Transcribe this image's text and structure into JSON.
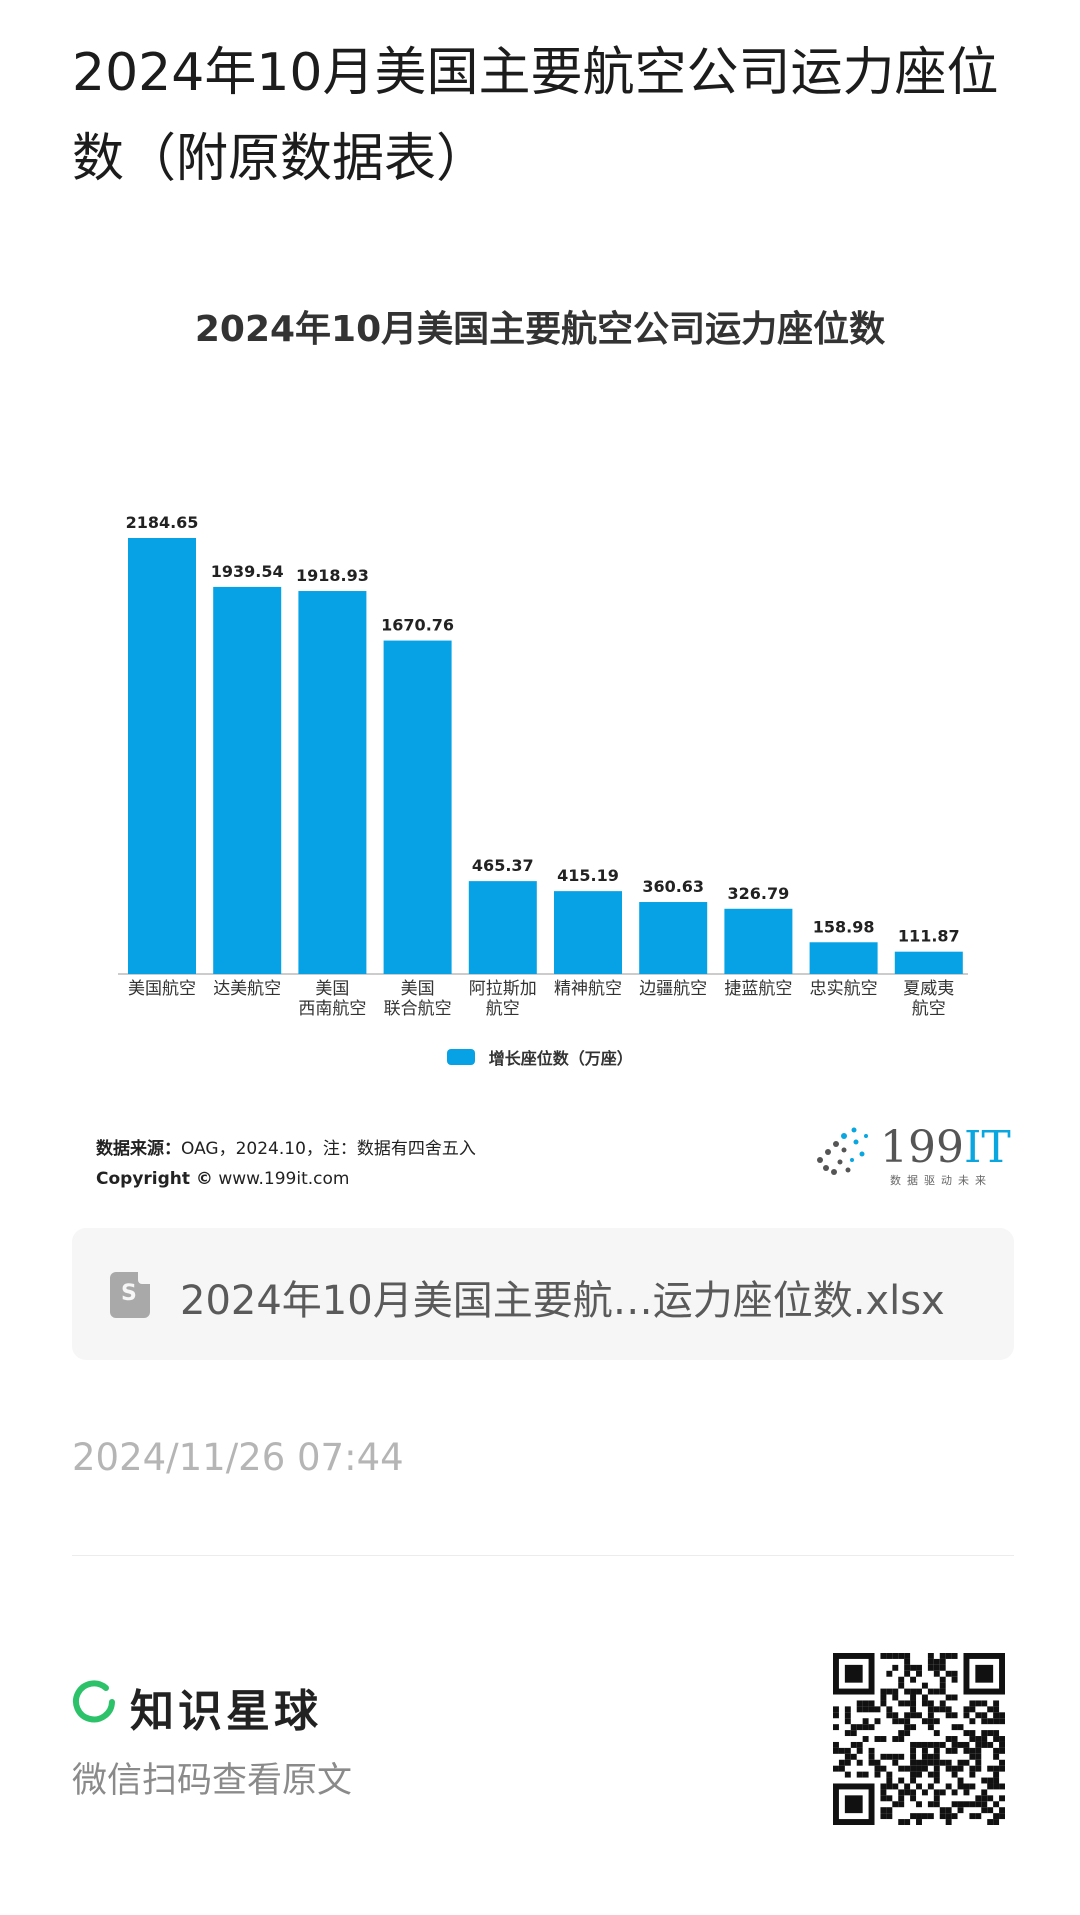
{
  "page": {
    "title": "2024年10月美国主要航空公司运力座位数（附原数据表）"
  },
  "chart_data": {
    "type": "bar",
    "title": "2024年10月美国主要航空公司运力座位数",
    "categories": [
      "美国航空",
      "达美航空",
      "美国\n西南航空",
      "美国\n联合航空",
      "阿拉斯加\n航空",
      "精神航空",
      "边疆航空",
      "捷蓝航空",
      "忠实航空",
      "夏威夷\n航空"
    ],
    "series": [
      {
        "name": "增长座位数（万座）",
        "values": [
          2184.65,
          1939.54,
          1918.93,
          1670.76,
          465.37,
          415.19,
          360.63,
          326.79,
          158.98,
          111.87
        ],
        "color": "#07A2E6"
      }
    ],
    "ylim": [
      0,
      2184.65
    ],
    "legend": "bottom",
    "grid": false
  },
  "source": {
    "label": "数据来源：",
    "text": "OAG，2024.10，注：数据有四舍五入",
    "copyright_label": "Copyright ©",
    "copyright_text": "www.199it.com"
  },
  "logo": {
    "num": "199",
    "it": "IT",
    "tagline": "数据驱动未来"
  },
  "attachment": {
    "icon": "spreadsheet-icon",
    "badge": "S",
    "name": "2024年10月美国主要航…运力座位数.xlsx"
  },
  "timestamp": "2024/11/26 07:44",
  "footer": {
    "brand": "知识星球",
    "hint": "微信扫码查看原文",
    "brand_color": "#2cc26a"
  }
}
